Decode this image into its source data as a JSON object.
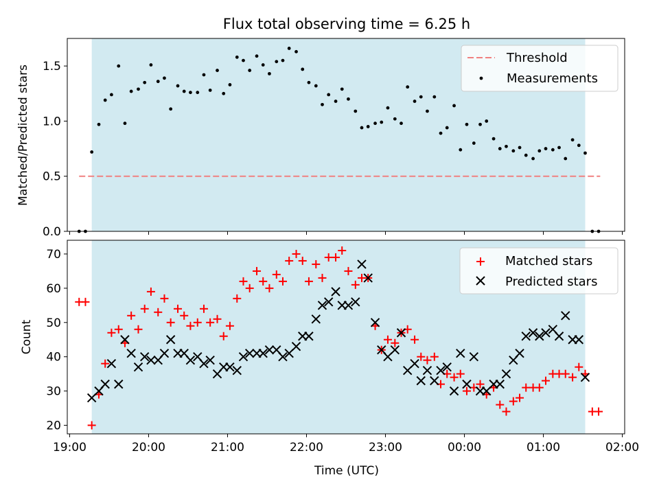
{
  "chart_data": [
    {
      "type": "scatter",
      "title": "Flux total observing time = 6.25 h",
      "xlabel": "",
      "ylabel": "Matched/Predicted stars",
      "ylim": [
        0,
        1.75
      ],
      "yticks": [
        "0.0",
        "0.5",
        "1.0",
        "1.5"
      ],
      "xlim_hours": [
        18.97,
        26.03
      ],
      "shaded_span_hours": [
        19.28,
        25.53
      ],
      "threshold": {
        "name": "Threshold",
        "value": 0.5,
        "x_range_hours": [
          19.12,
          25.72
        ],
        "color": "#f08080"
      },
      "legend_position": "top-right",
      "series": [
        {
          "name": "Measurements",
          "color": "#000000",
          "x": [
            19.12,
            19.2,
            19.28,
            19.37,
            19.45,
            19.53,
            19.62,
            19.7,
            19.78,
            19.87,
            19.95,
            20.03,
            20.12,
            20.2,
            20.28,
            20.37,
            20.45,
            20.53,
            20.62,
            20.7,
            20.78,
            20.87,
            20.95,
            21.03,
            21.12,
            21.2,
            21.28,
            21.37,
            21.45,
            21.53,
            21.62,
            21.7,
            21.78,
            21.87,
            21.95,
            22.03,
            22.12,
            22.2,
            22.28,
            22.37,
            22.45,
            22.53,
            22.62,
            22.7,
            22.78,
            22.87,
            22.95,
            23.03,
            23.12,
            23.2,
            23.28,
            23.37,
            23.45,
            23.53,
            23.62,
            23.7,
            23.78,
            23.87,
            23.95,
            24.03,
            24.12,
            24.2,
            24.28,
            24.37,
            24.45,
            24.53,
            24.62,
            24.7,
            24.78,
            24.87,
            24.95,
            25.03,
            25.12,
            25.2,
            25.28,
            25.37,
            25.45,
            25.53,
            25.62,
            25.7
          ],
          "y": [
            0.0,
            0.0,
            0.72,
            0.97,
            1.19,
            1.24,
            1.5,
            0.98,
            1.27,
            1.29,
            1.35,
            1.51,
            1.36,
            1.39,
            1.11,
            1.32,
            1.27,
            1.26,
            1.26,
            1.42,
            1.28,
            1.46,
            1.25,
            1.33,
            1.58,
            1.55,
            1.46,
            1.59,
            1.51,
            1.43,
            1.54,
            1.55,
            1.66,
            1.63,
            1.47,
            1.35,
            1.32,
            1.15,
            1.24,
            1.18,
            1.29,
            1.2,
            1.09,
            0.94,
            0.95,
            0.98,
            0.99,
            1.12,
            1.02,
            0.98,
            1.31,
            1.18,
            1.22,
            1.09,
            1.22,
            0.89,
            0.94,
            1.14,
            0.74,
            0.97,
            0.8,
            0.97,
            1.0,
            0.84,
            0.75,
            0.77,
            0.73,
            0.76,
            0.69,
            0.66,
            0.73,
            0.75,
            0.74,
            0.76,
            0.66,
            0.83,
            0.78,
            0.71,
            0.0,
            0.0
          ]
        }
      ]
    },
    {
      "type": "scatter",
      "title": "",
      "xlabel": "Time (UTC)",
      "ylabel": "Count",
      "ylim": [
        17.5,
        74
      ],
      "yticks": [
        "20",
        "30",
        "40",
        "50",
        "60",
        "70"
      ],
      "xticks": [
        "19:00",
        "20:00",
        "21:00",
        "22:00",
        "23:00",
        "00:00",
        "01:00",
        "02:00"
      ],
      "xtick_hours": [
        19,
        20,
        21,
        22,
        23,
        24,
        25,
        26
      ],
      "xlim_hours": [
        18.97,
        26.03
      ],
      "shaded_span_hours": [
        19.28,
        25.53
      ],
      "legend_position": "top-right",
      "series": [
        {
          "name": "Matched stars",
          "marker": "plus",
          "color": "#ff0000",
          "x": [
            19.12,
            19.2,
            19.28,
            19.37,
            19.45,
            19.53,
            19.62,
            19.7,
            19.78,
            19.87,
            19.95,
            20.03,
            20.12,
            20.2,
            20.28,
            20.37,
            20.45,
            20.53,
            20.62,
            20.7,
            20.78,
            20.87,
            20.95,
            21.03,
            21.12,
            21.2,
            21.28,
            21.37,
            21.45,
            21.53,
            21.62,
            21.7,
            21.78,
            21.87,
            21.95,
            22.03,
            22.12,
            22.2,
            22.28,
            22.37,
            22.45,
            22.53,
            22.62,
            22.7,
            22.78,
            22.87,
            22.95,
            23.03,
            23.12,
            23.2,
            23.28,
            23.37,
            23.45,
            23.53,
            23.62,
            23.7,
            23.78,
            23.87,
            23.95,
            24.03,
            24.12,
            24.2,
            24.28,
            24.37,
            24.45,
            24.53,
            24.62,
            24.7,
            24.78,
            24.87,
            24.95,
            25.03,
            25.12,
            25.2,
            25.28,
            25.37,
            25.45,
            25.53,
            25.62,
            25.7
          ],
          "y": [
            56,
            56,
            20,
            29,
            38,
            47,
            48,
            44,
            52,
            48,
            54,
            59,
            53,
            57,
            50,
            54,
            52,
            49,
            50,
            54,
            50,
            51,
            46,
            49,
            57,
            62,
            60,
            65,
            62,
            60,
            64,
            62,
            68,
            70,
            68,
            62,
            67,
            63,
            69,
            69,
            71,
            65,
            61,
            63,
            63,
            49,
            42,
            45,
            44,
            47,
            48,
            45,
            40,
            39,
            40,
            32,
            35,
            34,
            35,
            30,
            31,
            32,
            29,
            31,
            26,
            24,
            27,
            28,
            31,
            31,
            31,
            33,
            35,
            35,
            35,
            34,
            37,
            35,
            24,
            24
          ]
        },
        {
          "name": "Predicted stars",
          "marker": "x",
          "color": "#000000",
          "x": [
            19.28,
            19.37,
            19.45,
            19.53,
            19.62,
            19.7,
            19.78,
            19.87,
            19.95,
            20.03,
            20.12,
            20.2,
            20.28,
            20.37,
            20.45,
            20.53,
            20.62,
            20.7,
            20.78,
            20.87,
            20.95,
            21.03,
            21.12,
            21.2,
            21.28,
            21.37,
            21.45,
            21.53,
            21.62,
            21.7,
            21.78,
            21.87,
            21.95,
            22.03,
            22.12,
            22.2,
            22.28,
            22.37,
            22.45,
            22.53,
            22.62,
            22.7,
            22.78,
            22.87,
            22.95,
            23.03,
            23.12,
            23.2,
            23.28,
            23.37,
            23.45,
            23.53,
            23.62,
            23.7,
            23.78,
            23.87,
            23.95,
            24.03,
            24.12,
            24.2,
            24.28,
            24.37,
            24.45,
            24.53,
            24.62,
            24.7,
            24.78,
            24.87,
            24.95,
            25.03,
            25.12,
            25.2,
            25.28,
            25.37,
            25.45,
            25.53
          ],
          "y": [
            28,
            30,
            32,
            38,
            32,
            45,
            41,
            37,
            40,
            39,
            39,
            41,
            45,
            41,
            41,
            39,
            40,
            38,
            39,
            35,
            37,
            37,
            36,
            40,
            41,
            41,
            41,
            42,
            42,
            40,
            41,
            43,
            46,
            46,
            51,
            55,
            56,
            59,
            55,
            55,
            56,
            67,
            63,
            50,
            42,
            40,
            42,
            47,
            36,
            38,
            33,
            36,
            33,
            36,
            37,
            30,
            41,
            32,
            40,
            30,
            30,
            32,
            32,
            35,
            39,
            41,
            46,
            47,
            46,
            47,
            48,
            46,
            52,
            45,
            45,
            34
          ]
        }
      ]
    }
  ]
}
